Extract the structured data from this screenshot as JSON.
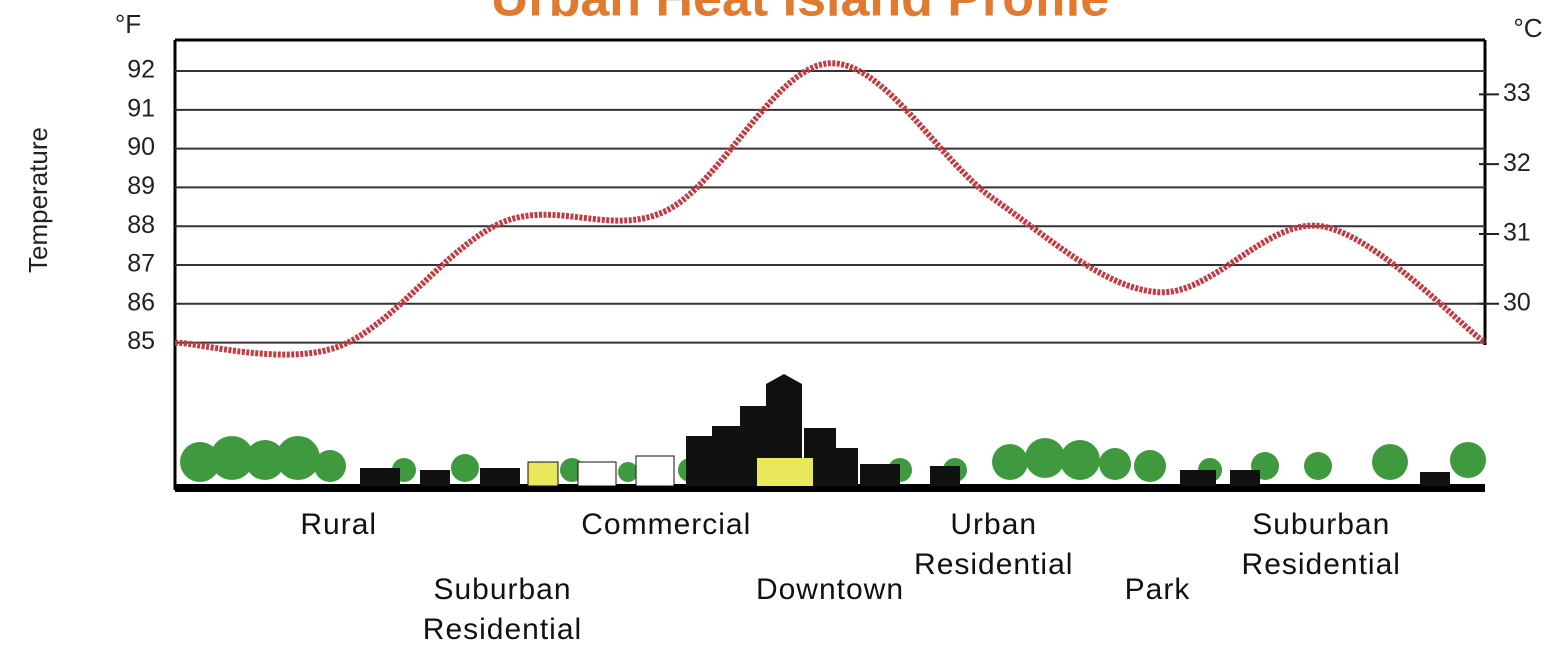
{
  "chart_data": {
    "type": "line",
    "title": "Urban Heat Island Profile",
    "y_label": "Temperature",
    "y_unit": "°F",
    "y2_unit": "°C",
    "categories": [
      null,
      "Rural",
      "Suburban Residential",
      "Commercial",
      "Downtown",
      "Urban Residential",
      "Park",
      "Suburban Residential",
      null
    ],
    "series": [
      {
        "color": "#c23b42",
        "values": [
          85.0,
          84.9,
          88.1,
          88.4,
          92.2,
          88.7,
          86.3,
          88.0,
          85.0
        ]
      }
    ],
    "ylim": [
      81.2,
      92.8
    ],
    "yticks": [
      85,
      86,
      87,
      88,
      89,
      90,
      91,
      92
    ],
    "y2lim": [
      27.33,
      33.78
    ],
    "y2ticks": [
      30,
      31,
      32,
      33
    ],
    "grid": true
  }
}
